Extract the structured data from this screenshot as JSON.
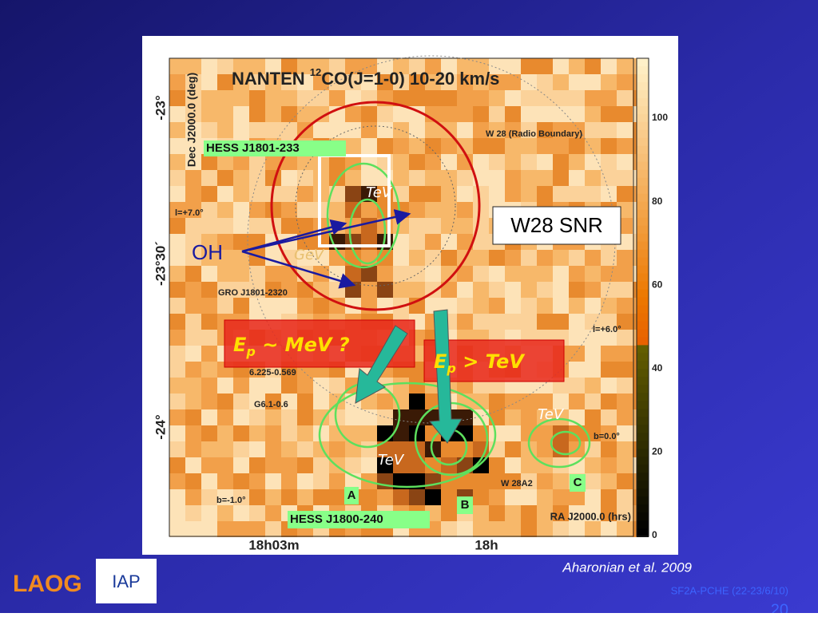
{
  "figure": {
    "title": {
      "main": "NANTEN ",
      "sup": "12",
      "rest": "CO(J=1-0)  10-20 km/s"
    },
    "y_axis_label": "Dec J2000.0 (deg)",
    "y_ticks": [
      "-23°",
      "-23°30´",
      "-24°"
    ],
    "x_axis_label": "RA J2000.0 (hrs)",
    "x_ticks": [
      "18h03m",
      "18h"
    ],
    "colorbar_ticks": [
      100,
      80,
      60,
      40,
      20,
      0
    ],
    "labels": {
      "hess1801": "HESS J1801-233",
      "w28_radio": "W 28 (Radio Boundary)",
      "l7": "l=+7.0°",
      "tev_top": "TeV",
      "gev": "GeV",
      "gro": "GRO J1801-2320",
      "l6": "l=+6.0°",
      "src1": "6.225-0.569",
      "src2": "G6.1-0.6",
      "tev_a": "TeV",
      "tev_c": "TeV",
      "b0": "b=0.0°",
      "w28a2": "W 28A2",
      "a": "A",
      "b": "B",
      "c": "C",
      "bm1": "b=-1.0°",
      "hess1800": "HESS J1800-240"
    },
    "overlays": {
      "w28snr": "W28 SNR",
      "oh": "OH",
      "mev": {
        "e": "E",
        "sub": "p",
        "rest": " ~ MeV ?"
      },
      "tev": {
        "e": "E",
        "sub": "p",
        "rest": " > TeV"
      }
    }
  },
  "citation": "Aharonian et al. 2009",
  "footer": {
    "event": "SF2A-PCHE (22-23/6/10)",
    "page": "20",
    "logo1": "LAOG",
    "logo2": "IAP"
  }
}
